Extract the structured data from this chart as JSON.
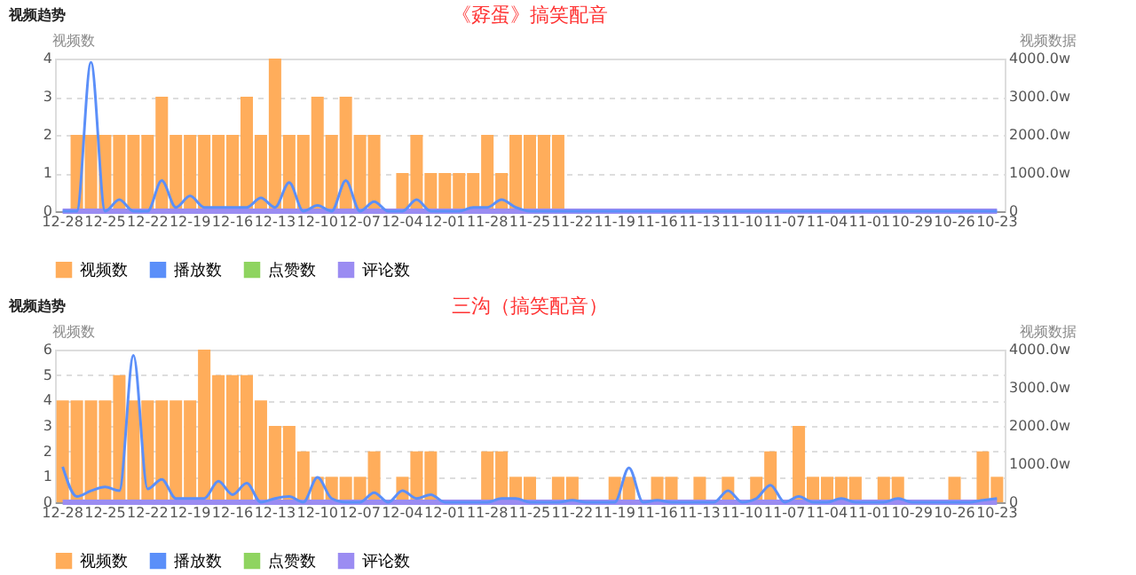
{
  "chart_data": [
    {
      "type": "bar",
      "title": "《孬蛋》搞笑配音",
      "annotations": [
        "视频趋势"
      ],
      "ylabel": "视频数",
      "y2label": "视频数据",
      "categories": [
        "12-28",
        null,
        null,
        "12-25",
        null,
        null,
        "12-22",
        null,
        null,
        "12-19",
        null,
        null,
        "12-16",
        null,
        null,
        "12-13",
        null,
        null,
        "12-10",
        null,
        null,
        "12-07",
        null,
        null,
        "12-04",
        null,
        null,
        "12-01",
        null,
        null,
        "11-28",
        null,
        null,
        "11-25",
        null,
        null,
        "11-22",
        null,
        null,
        "11-19",
        null,
        null,
        "11-16",
        null,
        null,
        "11-13",
        null,
        null,
        "11-10",
        null,
        null,
        "11-07",
        null,
        null,
        "11-04",
        null,
        null,
        "11-01",
        null,
        null,
        "10-29",
        null,
        null,
        "10-26",
        null,
        null,
        "10-23"
      ],
      "series": [
        {
          "name": "视频数",
          "color": "#ffad5b",
          "values": [
            0,
            2,
            2,
            2,
            2,
            2,
            2,
            3,
            2,
            2,
            2,
            2,
            2,
            3,
            2,
            4,
            2,
            2,
            3,
            2,
            3,
            2,
            2,
            0,
            1,
            2,
            1,
            1,
            1,
            1,
            2,
            1,
            2,
            2,
            2,
            2,
            0,
            0,
            0,
            0,
            0,
            0,
            0,
            0,
            0,
            0,
            0,
            0,
            0,
            0,
            0,
            0,
            0,
            0,
            0,
            0,
            0,
            0,
            0,
            0,
            0,
            0,
            0,
            0,
            0,
            0,
            0
          ]
        },
        {
          "name": "播放数",
          "type": "line",
          "axis": "y2",
          "color": "#5b8ff9",
          "values": [
            0,
            0,
            3900,
            0,
            300,
            0,
            0,
            800,
            100,
            400,
            100,
            100,
            100,
            100,
            350,
            100,
            750,
            0,
            150,
            0,
            800,
            0,
            250,
            0,
            0,
            300,
            0,
            0,
            0,
            100,
            100,
            300,
            100,
            0,
            0,
            0,
            0,
            0,
            0,
            0,
            0,
            0,
            0,
            0,
            0,
            0,
            0,
            0,
            0,
            0,
            0,
            0,
            0,
            0,
            0,
            0,
            0,
            0,
            0,
            0,
            0,
            0,
            0,
            0,
            0,
            0,
            0
          ]
        },
        {
          "name": "点赞数",
          "type": "line",
          "axis": "y2",
          "color": "#8fd460",
          "values": [
            null,
            null,
            null,
            null,
            null,
            null,
            null,
            null,
            null,
            null,
            null,
            null,
            null,
            null,
            null,
            null,
            null,
            null,
            null,
            null,
            null,
            null,
            null,
            null,
            null,
            null,
            null,
            null,
            null,
            null,
            null,
            null,
            null,
            null,
            null,
            null,
            null,
            null,
            null,
            null,
            null,
            null,
            null,
            null,
            null,
            null,
            null,
            null,
            null,
            null,
            null,
            null,
            null,
            null,
            null,
            null,
            null,
            null,
            null,
            null,
            null,
            null,
            null,
            null,
            null,
            null,
            null
          ]
        },
        {
          "name": "评论数",
          "type": "line",
          "axis": "y2",
          "color": "#9b8cf2",
          "values": [
            0,
            0,
            0,
            0,
            0,
            0,
            0,
            0,
            0,
            0,
            0,
            0,
            0,
            0,
            0,
            0,
            0,
            0,
            0,
            0,
            0,
            0,
            0,
            0,
            0,
            0,
            0,
            0,
            0,
            0,
            0,
            0,
            0,
            0,
            0,
            0,
            0,
            0,
            0,
            0,
            0,
            0,
            0,
            0,
            0,
            0,
            0,
            0,
            0,
            0,
            0,
            0,
            0,
            0,
            0,
            0,
            0,
            0,
            0,
            0,
            0,
            0,
            0,
            0,
            0,
            0,
            0
          ]
        }
      ],
      "ylim": [
        0,
        4
      ],
      "yticks": [
        0,
        1,
        2,
        3,
        4
      ],
      "y2lim": [
        0,
        4000
      ],
      "y2ticks": [
        0,
        {
          "value": 1000,
          "label": "1000.0w"
        },
        {
          "value": 2000,
          "label": "2000.0w"
        },
        {
          "value": 3000,
          "label": "3000.0w"
        },
        {
          "value": 4000,
          "label": "4000.0w"
        }
      ],
      "grid": "y",
      "legend": "bottom"
    },
    {
      "type": "bar",
      "title": "三沟（搞笑配音）",
      "annotations": [
        "视频趋势"
      ],
      "ylabel": "视频数",
      "y2label": "视频数据",
      "categories": [
        "12-28",
        null,
        null,
        "12-25",
        null,
        null,
        "12-22",
        null,
        null,
        "12-19",
        null,
        null,
        "12-16",
        null,
        null,
        "12-13",
        null,
        null,
        "12-10",
        null,
        null,
        "12-07",
        null,
        null,
        "12-04",
        null,
        null,
        "12-01",
        null,
        null,
        "11-28",
        null,
        null,
        "11-25",
        null,
        null,
        "11-22",
        null,
        null,
        "11-19",
        null,
        null,
        "11-16",
        null,
        null,
        "11-13",
        null,
        null,
        "11-10",
        null,
        null,
        "11-07",
        null,
        null,
        "11-04",
        null,
        null,
        "11-01",
        null,
        null,
        "10-29",
        null,
        null,
        "10-26",
        null,
        null,
        "10-23"
      ],
      "series": [
        {
          "name": "视频数",
          "color": "#ffad5b",
          "values": [
            4,
            4,
            4,
            4,
            5,
            4,
            4,
            4,
            4,
            4,
            6,
            5,
            5,
            5,
            4,
            3,
            3,
            2,
            1,
            1,
            1,
            1,
            2,
            0,
            1,
            2,
            2,
            0,
            0,
            0,
            2,
            2,
            1,
            1,
            0,
            1,
            1,
            0,
            0,
            1,
            1,
            0,
            1,
            1,
            0,
            1,
            0,
            1,
            0,
            1,
            2,
            0,
            3,
            1,
            1,
            1,
            1,
            0,
            1,
            1,
            0,
            0,
            0,
            1,
            0,
            2,
            1
          ]
        },
        {
          "name": "播放数",
          "type": "line",
          "axis": "y2",
          "color": "#5b8ff9",
          "values": [
            930,
            150,
            300,
            400,
            300,
            3850,
            350,
            600,
            100,
            100,
            100,
            550,
            200,
            500,
            0,
            100,
            150,
            0,
            650,
            100,
            0,
            0,
            250,
            0,
            300,
            100,
            200,
            0,
            0,
            0,
            0,
            100,
            100,
            0,
            0,
            0,
            50,
            0,
            0,
            0,
            900,
            0,
            50,
            0,
            0,
            0,
            0,
            300,
            0,
            100,
            450,
            0,
            150,
            0,
            0,
            100,
            0,
            0,
            0,
            100,
            0,
            0,
            0,
            0,
            0,
            50,
            100
          ]
        },
        {
          "name": "点赞数",
          "type": "line",
          "axis": "y2",
          "color": "#8fd460",
          "values": [
            null,
            null,
            null,
            null,
            null,
            null,
            null,
            null,
            null,
            null,
            null,
            null,
            null,
            null,
            null,
            null,
            null,
            null,
            null,
            null,
            null,
            null,
            null,
            null,
            null,
            null,
            null,
            null,
            null,
            null,
            null,
            null,
            null,
            null,
            null,
            null,
            null,
            null,
            null,
            null,
            null,
            null,
            null,
            null,
            null,
            null,
            null,
            null,
            null,
            null,
            null,
            null,
            null,
            null,
            null,
            null,
            null,
            null,
            null,
            null,
            null,
            null,
            null,
            null,
            null,
            null,
            null
          ]
        },
        {
          "name": "评论数",
          "type": "line",
          "axis": "y2",
          "color": "#9b8cf2",
          "values": [
            0,
            0,
            0,
            0,
            0,
            0,
            0,
            0,
            0,
            0,
            0,
            0,
            0,
            0,
            0,
            0,
            0,
            0,
            0,
            0,
            0,
            0,
            0,
            0,
            0,
            0,
            0,
            0,
            0,
            0,
            0,
            0,
            0,
            0,
            0,
            0,
            0,
            0,
            0,
            0,
            0,
            0,
            0,
            0,
            0,
            0,
            0,
            0,
            0,
            0,
            0,
            0,
            0,
            0,
            0,
            0,
            0,
            0,
            0,
            0,
            0,
            0,
            0,
            0,
            0,
            0,
            0
          ]
        }
      ],
      "ylim": [
        0,
        6
      ],
      "yticks": [
        0,
        1,
        2,
        3,
        4,
        5,
        6
      ],
      "y2lim": [
        0,
        4000
      ],
      "y2ticks": [
        0,
        {
          "value": 1000,
          "label": "1000.0w"
        },
        {
          "value": 2000,
          "label": "2000.0w"
        },
        {
          "value": 3000,
          "label": "3000.0w"
        },
        {
          "value": 4000,
          "label": "4000.0w"
        }
      ],
      "grid": "y",
      "legend": "bottom"
    }
  ]
}
